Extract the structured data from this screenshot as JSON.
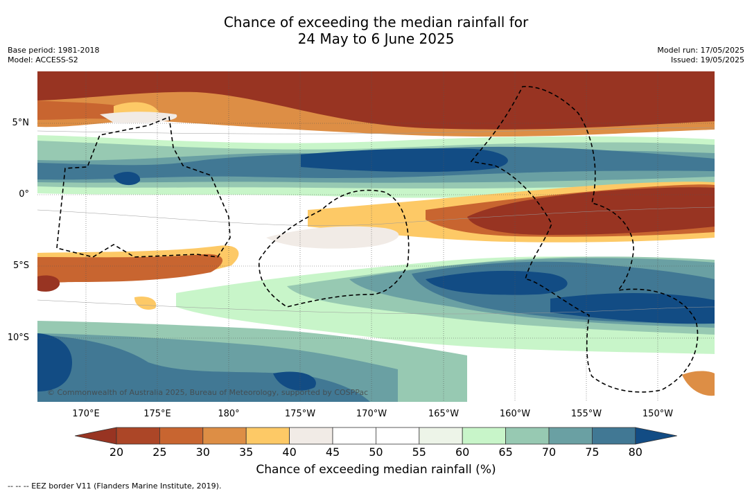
{
  "title": {
    "line1": "Chance of exceeding the median rainfall for",
    "line2": "24 May to 6 June 2025"
  },
  "meta_left": {
    "base_period": "Base period: 1981-2018",
    "model": "Model: ACCESS-S2"
  },
  "meta_right": {
    "model_run": "Model run: 17/05/2025",
    "issued": "Issued: 19/05/2025"
  },
  "map": {
    "latitude_labels": [
      "5°N",
      "0°",
      "5°S",
      "10°S"
    ],
    "longitude_labels": [
      "170°E",
      "175°E",
      "180°",
      "175°W",
      "170°W",
      "165°W",
      "160°W",
      "155°W",
      "150°W"
    ],
    "copyright": "© Commonwealth of Australia 2025, Bureau of Meteorology, supported by COSPPac"
  },
  "colorbar": {
    "ticks": [
      "20",
      "25",
      "30",
      "35",
      "40",
      "45",
      "50",
      "55",
      "60",
      "65",
      "70",
      "75",
      "80"
    ],
    "colors": [
      "#983422",
      "#ac4627",
      "#c86530",
      "#dd8e45",
      "#fdc966",
      "#f1ebe6",
      "#ffffff",
      "#ffffff",
      "#edf4e8",
      "#c8f5c9",
      "#97c9b2",
      "#6aa0a3",
      "#417894",
      "#124c84"
    ],
    "label": "Chance of exceeding median rainfall (%)"
  },
  "footer": "--  --  -- EEZ border V11 (Flanders Marine Institute, 2019)."
}
